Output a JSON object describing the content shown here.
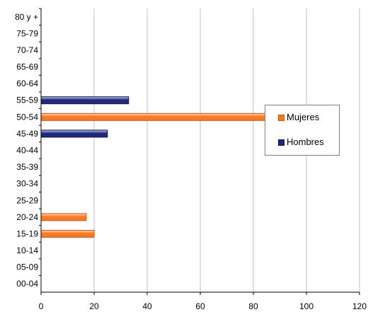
{
  "chart_data": {
    "type": "bar",
    "orientation": "horizontal",
    "categories": [
      "80 y +",
      "75-79",
      "70-74",
      "65-69",
      "60-64",
      "55-59",
      "50-54",
      "45-49",
      "40-44",
      "35-39",
      "30-34",
      "25-29",
      "20-24",
      "15-19",
      "10-14",
      "05-09",
      "00-04"
    ],
    "series": [
      {
        "name": "Mujeres",
        "color": "#f97822",
        "values": [
          0,
          0,
          0,
          0,
          0,
          0,
          88,
          0,
          0,
          0,
          0,
          0,
          17,
          20,
          0,
          0,
          0
        ]
      },
      {
        "name": "Hombres",
        "color": "#1f2a7a",
        "values": [
          0,
          0,
          0,
          0,
          0,
          33,
          0,
          25,
          0,
          0,
          0,
          0,
          0,
          0,
          0,
          0,
          0
        ]
      }
    ],
    "xticks": [
      0,
      20,
      40,
      60,
      80,
      100,
      120
    ],
    "xlim": [
      0,
      120
    ],
    "grid": true,
    "legend_position": "right"
  }
}
